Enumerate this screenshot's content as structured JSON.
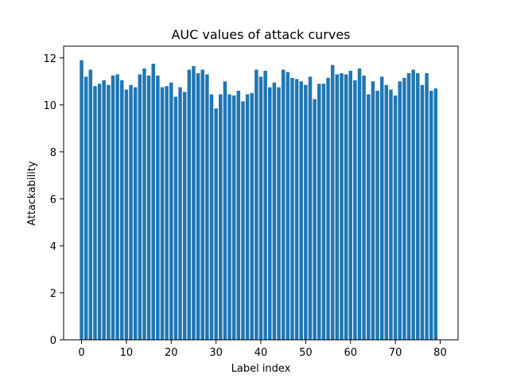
{
  "chart_data": {
    "type": "bar",
    "title": "AUC values of attack curves",
    "xlabel": "Label index",
    "ylabel": "Attackability",
    "xlim": [
      -4,
      84
    ],
    "ylim": [
      0,
      12.5
    ],
    "xticks": [
      0,
      10,
      20,
      30,
      40,
      50,
      60,
      70,
      80
    ],
    "yticks": [
      0,
      2,
      4,
      6,
      8,
      10,
      12
    ],
    "grid": false,
    "bar_color": "#1f77b4",
    "x": [
      0,
      1,
      2,
      3,
      4,
      5,
      6,
      7,
      8,
      9,
      10,
      11,
      12,
      13,
      14,
      15,
      16,
      17,
      18,
      19,
      20,
      21,
      22,
      23,
      24,
      25,
      26,
      27,
      28,
      29,
      30,
      31,
      32,
      33,
      34,
      35,
      36,
      37,
      38,
      39,
      40,
      41,
      42,
      43,
      44,
      45,
      46,
      47,
      48,
      49,
      50,
      51,
      52,
      53,
      54,
      55,
      56,
      57,
      58,
      59,
      60,
      61,
      62,
      63,
      64,
      65,
      66,
      67,
      68,
      69,
      70,
      71,
      72,
      73,
      74,
      75,
      76,
      77,
      78,
      79
    ],
    "values": [
      11.9,
      11.2,
      11.5,
      10.8,
      10.9,
      11.05,
      10.85,
      11.25,
      11.3,
      11.05,
      10.65,
      10.85,
      10.75,
      11.3,
      11.55,
      11.25,
      11.75,
      11.25,
      10.75,
      10.8,
      10.95,
      10.35,
      10.75,
      10.55,
      11.5,
      11.65,
      11.35,
      11.5,
      11.3,
      10.45,
      9.85,
      10.45,
      11.0,
      10.45,
      10.4,
      10.6,
      10.15,
      10.45,
      10.5,
      11.5,
      11.2,
      11.45,
      10.75,
      10.95,
      10.75,
      11.5,
      11.4,
      11.15,
      11.1,
      11.0,
      10.85,
      11.2,
      10.25,
      10.9,
      10.9,
      11.15,
      11.7,
      11.3,
      11.35,
      11.3,
      11.45,
      11.05,
      11.55,
      11.25,
      10.45,
      11.0,
      10.6,
      11.2,
      10.85,
      10.65,
      10.4,
      11.0,
      11.15,
      11.35,
      11.5,
      11.35,
      10.85,
      11.35,
      10.6,
      10.7
    ]
  }
}
